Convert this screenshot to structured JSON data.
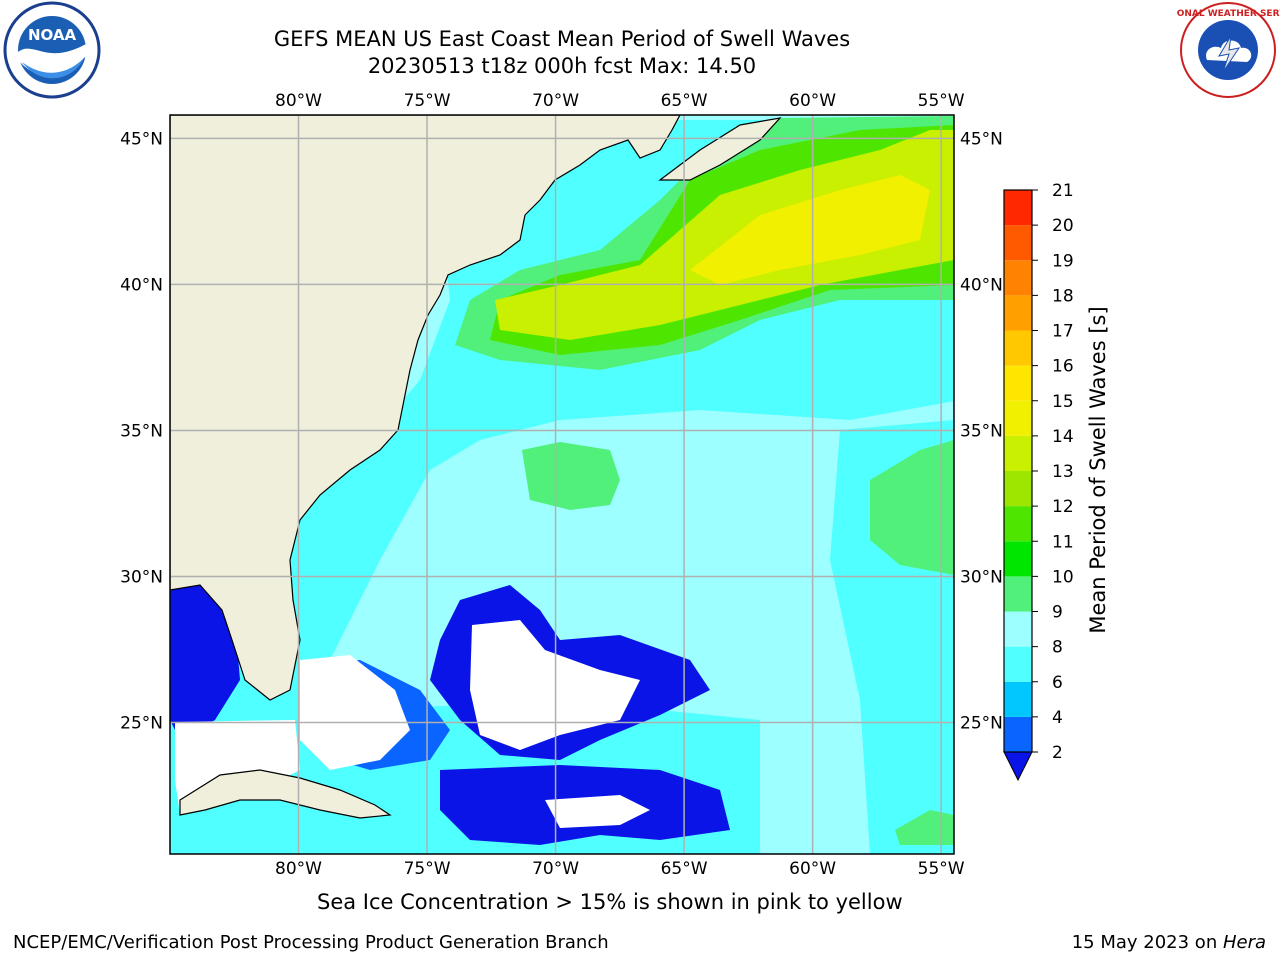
{
  "title_line1": "GEFS MEAN US East Coast Mean Period of Swell Waves",
  "title_line2": "20230513 t18z 000h fcst   Max: 14.50",
  "map": {
    "lon_labels": [
      "80°W",
      "75°W",
      "70°W",
      "65°W",
      "60°W",
      "55°W"
    ],
    "lat_labels": [
      "45°N",
      "40°N",
      "35°N",
      "30°N",
      "25°N"
    ],
    "lon_values": [
      -80,
      -75,
      -70,
      -65,
      -60,
      -55
    ],
    "lat_values": [
      45,
      40,
      35,
      30,
      25
    ],
    "lon_range": [
      -85,
      -54.5
    ],
    "lat_range": [
      20.5,
      45.8
    ]
  },
  "colorbar": {
    "label": "Mean Period of Swell Waves [s]",
    "ticks": [
      "2",
      "4",
      "6",
      "8",
      "9",
      "10",
      "11",
      "12",
      "13",
      "14",
      "15",
      "16",
      "17",
      "18",
      "19",
      "20",
      "21"
    ],
    "colors": [
      "#0a64ff",
      "#00c8ff",
      "#50ffff",
      "#9dffff",
      "#50f07a",
      "#00e600",
      "#4ee600",
      "#9ee600",
      "#c8f000",
      "#f0f000",
      "#ffe600",
      "#ffc800",
      "#ffa000",
      "#ff8200",
      "#ff5a00",
      "#ff2800"
    ],
    "under_color": "#0a14e6"
  },
  "colors": {
    "land": "#efefdc",
    "ocean_base": "#9dffff",
    "grid": "#b0b0b0"
  },
  "subnote": "Sea Ice Concentration > 15% is shown in pink to yellow",
  "footer_left": "NCEP/EMC/Verification Post Processing Product Generation Branch",
  "footer_date": "15 May 2023 on ",
  "footer_host": "Hera",
  "logos": {
    "left_text": "NOAA",
    "right_text": "NATIONAL WEATHER SERVICE"
  }
}
